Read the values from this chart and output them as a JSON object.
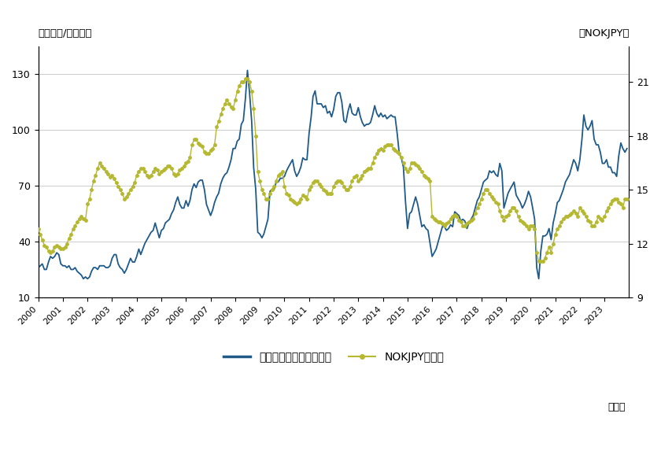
{
  "title_left": "（米ドル/バレル）",
  "title_right": "（NOKJPY）",
  "xlabel_suffix": "（年）",
  "legend_brent": "ブレント原油先物（左）",
  "legend_nokjpy": "NOKJPY（右）",
  "ylim_left": [
    10,
    145
  ],
  "ylim_right": [
    9,
    23
  ],
  "yticks_left": [
    10,
    40,
    70,
    100,
    130
  ],
  "yticks_right": [
    9,
    12,
    15,
    18,
    21
  ],
  "color_brent": "#1e5a8a",
  "color_nokjpy": "#b5b830",
  "background_color": "#ffffff",
  "grid_color": "#cccccc",
  "brent_monthly": [
    26,
    27,
    28,
    25,
    25,
    29,
    32,
    31,
    32,
    34,
    33,
    28,
    27,
    27,
    26,
    27,
    25,
    25,
    26,
    24,
    23,
    22,
    20,
    21,
    20,
    21,
    24,
    26,
    26,
    25,
    27,
    27,
    27,
    26,
    26,
    27,
    31,
    33,
    33,
    28,
    26,
    25,
    23,
    25,
    28,
    31,
    29,
    29,
    32,
    36,
    33,
    36,
    39,
    41,
    43,
    45,
    46,
    50,
    46,
    42,
    46,
    47,
    50,
    51,
    52,
    55,
    57,
    61,
    64,
    60,
    58,
    58,
    62,
    59,
    62,
    68,
    71,
    69,
    72,
    73,
    73,
    68,
    60,
    57,
    54,
    57,
    61,
    64,
    66,
    71,
    74,
    76,
    77,
    80,
    84,
    90,
    90,
    94,
    95,
    103,
    105,
    117,
    132,
    120,
    105,
    80,
    68,
    45,
    44,
    42,
    44,
    48,
    52,
    67,
    68,
    68,
    72,
    72,
    74,
    74,
    75,
    78,
    80,
    82,
    84,
    78,
    75,
    77,
    80,
    85,
    84,
    84,
    98,
    107,
    118,
    121,
    114,
    114,
    114,
    112,
    113,
    109,
    110,
    107,
    111,
    118,
    120,
    120,
    115,
    105,
    104,
    110,
    114,
    109,
    108,
    108,
    112,
    107,
    104,
    102,
    103,
    103,
    104,
    108,
    113,
    109,
    107,
    109,
    107,
    108,
    106,
    107,
    108,
    107,
    107,
    98,
    87,
    85,
    80,
    62,
    47,
    55,
    56,
    60,
    64,
    60,
    54,
    48,
    49,
    47,
    46,
    39,
    32,
    34,
    36,
    40,
    44,
    48,
    48,
    46,
    47,
    49,
    48,
    56,
    55,
    54,
    51,
    52,
    51,
    47,
    50,
    52,
    54,
    58,
    62,
    64,
    68,
    72,
    73,
    74,
    78,
    77,
    78,
    76,
    75,
    82,
    78,
    58,
    62,
    66,
    68,
    70,
    72,
    65,
    63,
    61,
    58,
    60,
    63,
    67,
    64,
    58,
    52,
    26,
    20,
    35,
    43,
    43,
    44,
    47,
    41,
    50,
    55,
    61,
    62,
    65,
    68,
    72,
    74,
    76,
    80,
    84,
    82,
    78,
    84,
    95,
    108,
    102,
    100,
    102,
    105,
    95,
    92,
    92,
    88,
    82,
    82,
    84,
    80,
    80,
    77,
    77,
    75,
    86,
    93,
    90,
    88,
    90
  ],
  "nokjpy_monthly": [
    12.8,
    12.5,
    12.2,
    11.9,
    11.8,
    11.6,
    11.5,
    11.6,
    11.8,
    11.9,
    11.8,
    11.7,
    11.7,
    11.8,
    12.0,
    12.3,
    12.5,
    12.8,
    13.0,
    13.2,
    13.4,
    13.5,
    13.4,
    13.3,
    14.2,
    14.5,
    15.0,
    15.5,
    15.8,
    16.2,
    16.5,
    16.3,
    16.2,
    16.0,
    15.9,
    15.7,
    15.8,
    15.6,
    15.4,
    15.2,
    15.0,
    14.8,
    14.5,
    14.6,
    14.8,
    15.0,
    15.2,
    15.4,
    15.8,
    16.0,
    16.2,
    16.2,
    16.0,
    15.8,
    15.7,
    15.8,
    16.0,
    16.2,
    16.1,
    15.9,
    16.0,
    16.1,
    16.2,
    16.3,
    16.3,
    16.2,
    15.9,
    15.8,
    15.9,
    16.1,
    16.2,
    16.3,
    16.5,
    16.6,
    16.8,
    17.5,
    17.8,
    17.8,
    17.6,
    17.5,
    17.4,
    17.1,
    17.0,
    17.0,
    17.2,
    17.3,
    17.5,
    18.5,
    18.8,
    19.2,
    19.5,
    19.8,
    20.0,
    19.8,
    19.6,
    19.5,
    20.0,
    20.5,
    20.8,
    21.0,
    21.0,
    21.2,
    21.2,
    21.0,
    20.5,
    19.5,
    18.0,
    16.0,
    15.5,
    15.0,
    14.8,
    14.5,
    14.5,
    14.8,
    15.0,
    15.2,
    15.5,
    15.8,
    15.9,
    16.0,
    15.2,
    14.8,
    14.7,
    14.5,
    14.4,
    14.3,
    14.2,
    14.3,
    14.5,
    14.7,
    14.6,
    14.5,
    15.0,
    15.2,
    15.4,
    15.5,
    15.5,
    15.3,
    15.2,
    15.0,
    14.9,
    14.8,
    14.8,
    14.8,
    15.2,
    15.4,
    15.5,
    15.5,
    15.4,
    15.2,
    15.0,
    15.0,
    15.2,
    15.5,
    15.7,
    15.8,
    15.5,
    15.6,
    15.8,
    16.0,
    16.1,
    16.2,
    16.2,
    16.5,
    16.8,
    17.0,
    17.2,
    17.3,
    17.2,
    17.4,
    17.5,
    17.5,
    17.5,
    17.3,
    17.2,
    17.1,
    17.0,
    16.8,
    16.5,
    16.2,
    16.0,
    16.2,
    16.5,
    16.5,
    16.4,
    16.3,
    16.2,
    16.0,
    15.8,
    15.7,
    15.6,
    15.5,
    13.5,
    13.4,
    13.3,
    13.2,
    13.2,
    13.1,
    13.0,
    13.1,
    13.2,
    13.4,
    13.5,
    13.6,
    13.5,
    13.3,
    13.2,
    13.0,
    13.0,
    13.1,
    13.2,
    13.3,
    13.4,
    13.7,
    14.0,
    14.2,
    14.5,
    14.8,
    15.0,
    15.0,
    14.8,
    14.6,
    14.5,
    14.3,
    14.2,
    13.8,
    13.5,
    13.3,
    13.5,
    13.6,
    13.8,
    14.0,
    14.0,
    13.8,
    13.5,
    13.3,
    13.2,
    13.1,
    13.0,
    12.8,
    13.0,
    13.0,
    12.8,
    11.5,
    11.0,
    11.0,
    11.0,
    11.2,
    11.5,
    11.8,
    11.5,
    12.0,
    12.5,
    12.8,
    13.0,
    13.2,
    13.4,
    13.5,
    13.5,
    13.6,
    13.7,
    13.8,
    13.7,
    13.5,
    14.0,
    13.8,
    13.7,
    13.5,
    13.3,
    13.2,
    13.0,
    13.0,
    13.2,
    13.5,
    13.4,
    13.3,
    13.5,
    13.8,
    14.0,
    14.2,
    14.4,
    14.5,
    14.5,
    14.3,
    14.2,
    14.0,
    14.5,
    14.5
  ]
}
